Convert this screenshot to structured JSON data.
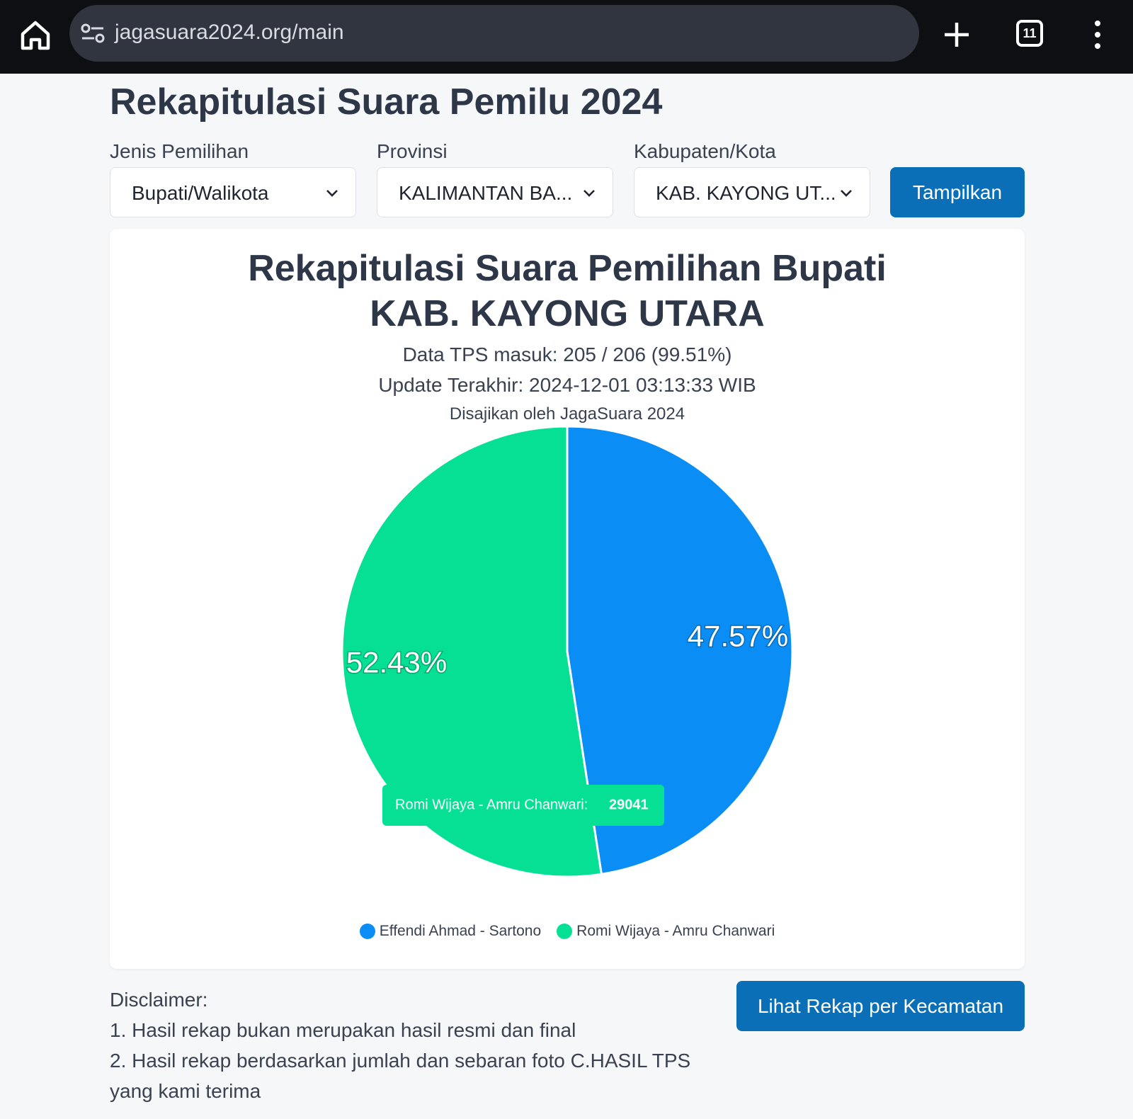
{
  "browser": {
    "url": "jagasuara2024.org/main",
    "tab_count": "11"
  },
  "page": {
    "title": "Rekapitulasi Suara Pemilu 2024"
  },
  "filters": {
    "jenis_label": "Jenis Pemilihan",
    "jenis_value": "Bupati/Walikota",
    "provinsi_label": "Provinsi",
    "provinsi_value": "KALIMANTAN BA...",
    "kabupaten_label": "Kabupaten/Kota",
    "kabupaten_value": "KAB. KAYONG UT...",
    "submit_label": "Tampilkan"
  },
  "card": {
    "title_line1": "Rekapitulasi Suara Pemilihan Bupati",
    "title_line2": "KAB. KAYONG UTARA",
    "tps_info": "Data TPS masuk: 205 / 206 (99.51%)",
    "update_info": "Update Terakhir: 2024-12-01 03:13:33 WIB",
    "source_info": "Disajikan oleh JagaSuara 2024"
  },
  "chart_data": {
    "type": "pie",
    "series": [
      {
        "name": "Effendi Ahmad - Sartono",
        "percent": 47.57,
        "percent_label": "47.57%",
        "color": "#0a8ef5"
      },
      {
        "name": "Romi Wijaya - Amru Chanwari",
        "percent": 52.43,
        "percent_label": "52.43%",
        "color": "#05e095"
      }
    ],
    "tooltip": {
      "label": "Romi Wijaya - Amru Chanwari:",
      "value": "29041"
    }
  },
  "disclaimer": {
    "heading": "Disclaimer:",
    "line1": "1. Hasil rekap bukan merupakan hasil resmi dan final",
    "line2": "2. Hasil rekap berdasarkan jumlah dan sebaran foto C.HASIL TPS",
    "line3": "yang kami terima"
  },
  "actions": {
    "rekap_kecamatan_label": "Lihat Rekap per Kecamatan"
  }
}
